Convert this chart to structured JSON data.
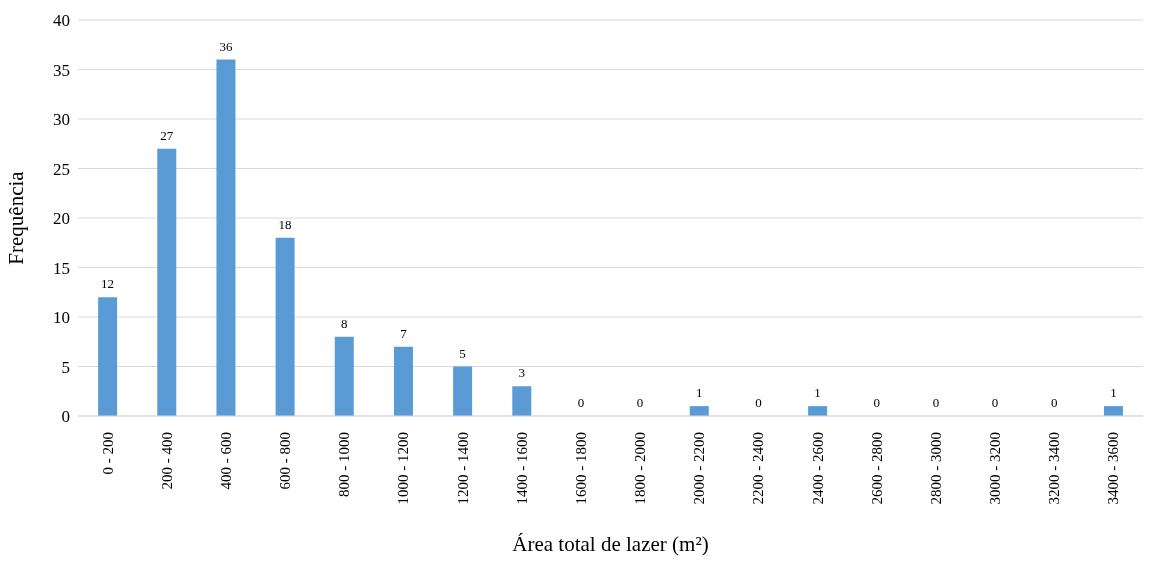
{
  "chart_data": {
    "type": "bar",
    "xlabel": "Área total de lazer (m²)",
    "ylabel": "Frequência",
    "categories": [
      "0 - 200",
      "200 - 400",
      "400 - 600",
      "600 - 800",
      "800 - 1000",
      "1000 - 1200",
      "1200 - 1400",
      "1400 - 1600",
      "1600 - 1800",
      "1800 - 2000",
      "2000 - 2200",
      "2200 - 2400",
      "2400 - 2600",
      "2600 - 2800",
      "2800 - 3000",
      "3000 - 3200",
      "3200 - 3400",
      "3400 - 3600"
    ],
    "values": [
      12,
      27,
      36,
      18,
      8,
      7,
      5,
      3,
      0,
      0,
      1,
      0,
      1,
      0,
      0,
      0,
      0,
      1
    ],
    "color": "#5b9bd5",
    "ylim": [
      0,
      40
    ],
    "yticks": [
      0,
      5,
      10,
      15,
      20,
      25,
      30,
      35,
      40
    ],
    "grid": "y",
    "data_labels": true
  }
}
